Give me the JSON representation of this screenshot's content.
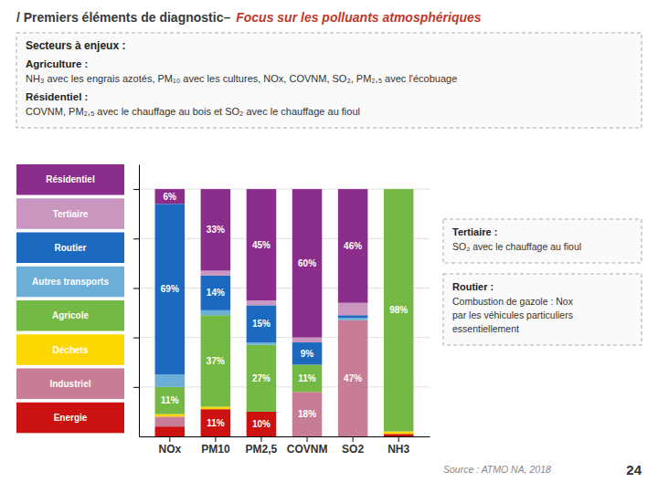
{
  "chart_data": {
    "type": "bar",
    "stacked": true,
    "title": "/ Premiers éléments de diagnostic–",
    "subtitle": "Focus sur les polluants atmosphériques",
    "categories": [
      "NOx",
      "PM10",
      "PM2,5",
      "COVNM",
      "SO2",
      "NH3"
    ],
    "series": [
      {
        "name": "Energie",
        "color": "#CC1111",
        "values": [
          4,
          11,
          10,
          0,
          0,
          1
        ],
        "value_labels": [
          null,
          "11%",
          "10%",
          null,
          null,
          null
        ]
      },
      {
        "name": "Industriel",
        "color": "#C87D96",
        "values": [
          4,
          0,
          0,
          18,
          47,
          0
        ],
        "value_labels": [
          null,
          null,
          null,
          "18%",
          "47%",
          null
        ]
      },
      {
        "name": "Déchets",
        "color": "#FFD700",
        "values": [
          1,
          1,
          0,
          0,
          0,
          1
        ],
        "value_labels": [
          null,
          null,
          null,
          null,
          null,
          null
        ]
      },
      {
        "name": "Agricole",
        "color": "#74B944",
        "values": [
          11,
          37,
          27,
          11,
          0,
          98
        ],
        "value_labels": [
          "11%",
          "37%",
          "27%",
          "11%",
          null,
          "98%"
        ]
      },
      {
        "name": "Autres transports",
        "color": "#6BAED6",
        "values": [
          5,
          2,
          1,
          0,
          1,
          0
        ],
        "value_labels": [
          null,
          null,
          null,
          null,
          null,
          null
        ]
      },
      {
        "name": "Routier",
        "color": "#1B6ABF",
        "values": [
          69,
          14,
          15,
          9,
          1,
          0
        ],
        "value_labels": [
          "69%",
          "14%",
          "15%",
          "9%",
          null,
          null
        ]
      },
      {
        "name": "Tertiaire",
        "color": "#C896BE",
        "values": [
          0,
          2,
          2,
          2,
          5,
          0
        ],
        "value_labels": [
          null,
          null,
          null,
          null,
          null,
          null
        ]
      },
      {
        "name": "Résidentiel",
        "color": "#8B2D8B",
        "values": [
          6,
          33,
          45,
          60,
          46,
          0
        ],
        "value_labels": [
          "6%",
          "33%",
          "45%",
          "60%",
          "46%",
          null
        ]
      }
    ],
    "ylim": [
      0,
      110
    ],
    "yticks": [
      20,
      40,
      60,
      80,
      100
    ],
    "grid": true,
    "tick_labels": "x",
    "data_labels": true,
    "legend": "left",
    "annotations": [
      {
        "heading": "Secteurs à enjeux :",
        "items": [
          {
            "label": "Agriculture :",
            "text": [
              "NH₃ avec les engrais azotés, PM₁₀ avec les cultures, NOx, COVNM, SO₂, PM₂,₅ avec l'écobuage"
            ]
          },
          {
            "label": "Résidentiel :",
            "text": [
              "COVNM, PM₂,₅ avec le chauffage au bois et SO₂ avec le chauffage au fioul"
            ]
          }
        ]
      },
      {
        "items": [
          {
            "label": "Tertiaire :",
            "text": [
              "SO₂ avec le chauffage au fioul"
            ]
          }
        ]
      },
      {
        "items": [
          {
            "label": "Routier :",
            "text": [
              "Combustion de gazole : Nox",
              "par les véhicules particuliers",
              "essentiellement"
            ]
          }
        ]
      },
      {
        "text": "Source : ATMO NA, 2018"
      },
      {
        "text": "24"
      }
    ]
  }
}
